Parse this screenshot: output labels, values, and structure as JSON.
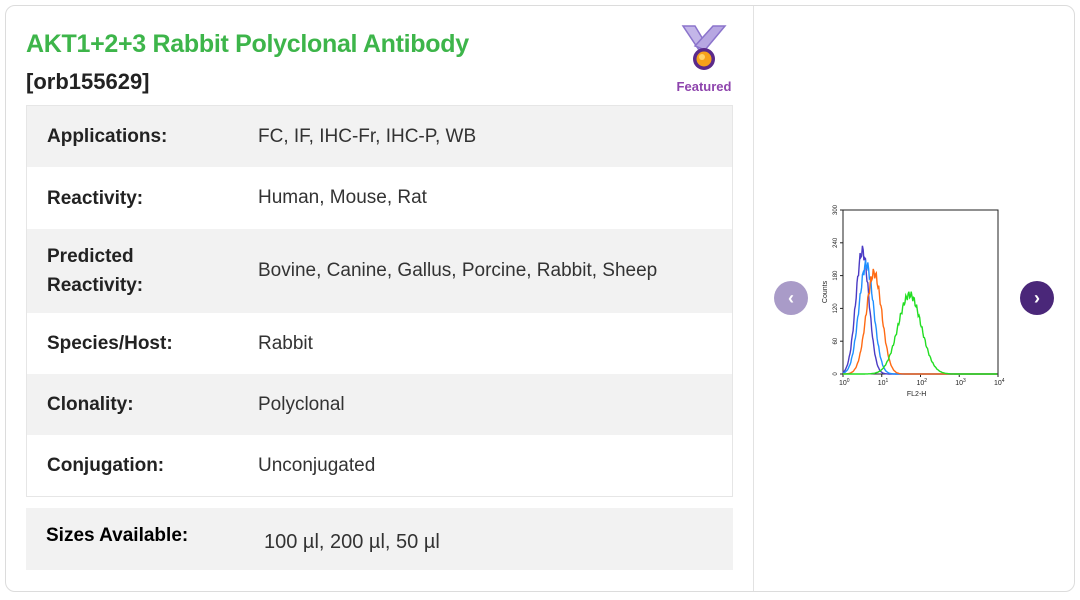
{
  "product": {
    "title": "AKT1+2+3 Rabbit Polyclonal Antibody",
    "sku": "[orb155629]",
    "badge": "Featured",
    "medal_icon": "medal-icon"
  },
  "specs": [
    {
      "label": "Applications:",
      "value": "FC,  IF,  IHC-Fr,  IHC-P,  WB"
    },
    {
      "label": "Reactivity:",
      "value": "Human, Mouse, Rat"
    },
    {
      "label": "Predicted Reactivity:",
      "value": "Bovine, Canine, Gallus, Porcine, Rabbit, Sheep"
    },
    {
      "label": "Species/Host:",
      "value": "Rabbit"
    },
    {
      "label": "Clonality:",
      "value": "Polyclonal"
    },
    {
      "label": "Conjugation:",
      "value": "Unconjugated"
    }
  ],
  "sizes": {
    "label": "Sizes Available:",
    "value": "100 µl, 200 µl, 50 µl"
  },
  "gallery": {
    "prev_icon": "chevron-left-icon",
    "next_icon": "chevron-right-icon",
    "image": {
      "ylabel": "Counts",
      "xlabel": "FL2-H",
      "yticks": [
        "0",
        "60",
        "120",
        "180",
        "240",
        "300"
      ],
      "xticks": [
        "0",
        "1",
        "2",
        "3",
        "4"
      ],
      "colors": {
        "purple": "#4b3bc4",
        "blue": "#1e90ff",
        "orange": "#ff6a13",
        "green": "#22dd22"
      }
    }
  },
  "colors": {
    "title": "#3db54a",
    "accent": "#4a2779",
    "accent_light": "#a99bc8",
    "badge": "#8e44ad"
  }
}
